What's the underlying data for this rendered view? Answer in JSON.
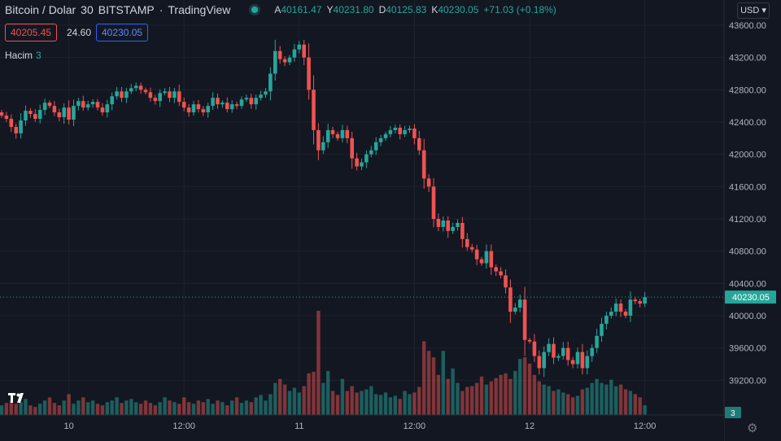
{
  "header": {
    "symbol": "Bitcoin / Dolar",
    "interval": "30",
    "exchange": "BITSTAMP",
    "source": "TradingView",
    "o_key": "A",
    "o_val": "40161.47",
    "h_key": "Y",
    "h_val": "40231.80",
    "l_key": "D",
    "l_val": "40125.83",
    "c_key": "K",
    "c_val": "40230.05",
    "change": "+71.03 (+0.18%)"
  },
  "trade": {
    "sell": "40205.45",
    "spread": "24.60",
    "buy": "40230.05"
  },
  "volume_legend": {
    "label": "Hacim",
    "value": "3"
  },
  "currency_button": "USD",
  "colors": {
    "up": "#26a69a",
    "down": "#ef5350",
    "background": "#131722",
    "grid": "#1e222d",
    "buy_border": "#2962ff"
  },
  "icons": {
    "status": "market-open-dot",
    "logo": "tradingview-logo",
    "settings": "gear-icon",
    "dropdown": "chevron-down-icon"
  },
  "chart_data": {
    "type": "candlestick",
    "ylim": [
      39000,
      43700
    ],
    "y_ticks": [
      39200,
      39600,
      40000,
      40400,
      40800,
      41200,
      41600,
      42000,
      42400,
      42800,
      43200,
      43600
    ],
    "y_tick_labels": [
      "39200.00",
      "39600.00",
      "40000.00",
      "40400.00",
      "40800.00",
      "41200.00",
      "41600.00",
      "42000.00",
      "42400.00",
      "42800.00",
      "43200.00",
      "43600.00"
    ],
    "x_labels": [
      {
        "label": "10",
        "index": 14
      },
      {
        "label": "12:00",
        "index": 38
      },
      {
        "label": "11",
        "index": 62
      },
      {
        "label": "12:00",
        "index": 86
      },
      {
        "label": "12",
        "index": 110
      },
      {
        "label": "12:00",
        "index": 134
      }
    ],
    "last_price": 40230.05,
    "last_price_label": "40230.05",
    "last_volume_label": "3",
    "candles_close": [
      42480,
      42440,
      42340,
      42260,
      42420,
      42540,
      42500,
      42440,
      42550,
      42640,
      42600,
      42520,
      42460,
      42580,
      42430,
      42600,
      42660,
      42580,
      42620,
      42650,
      42580,
      42520,
      42620,
      42720,
      42780,
      42700,
      42780,
      42820,
      42850,
      42800,
      42770,
      42700,
      42660,
      42760,
      42780,
      42700,
      42780,
      42650,
      42580,
      42520,
      42620,
      42560,
      42520,
      42600,
      42700,
      42620,
      42640,
      42560,
      42620,
      42600,
      42680,
      42700,
      42620,
      42700,
      42740,
      42780,
      43000,
      43280,
      43180,
      43140,
      43200,
      43300,
      43360,
      43200,
      42800,
      42300,
      42050,
      42150,
      42300,
      42250,
      42200,
      42300,
      42200,
      41950,
      41850,
      41900,
      42000,
      42050,
      42150,
      42200,
      42250,
      42300,
      42330,
      42250,
      42300,
      42320,
      42200,
      42050,
      41700,
      41600,
      41200,
      41100,
      41180,
      41050,
      41100,
      41150,
      40950,
      40850,
      40820,
      40700,
      40650,
      40800,
      40600,
      40550,
      40500,
      40350,
      40050,
      40100,
      40200,
      39700,
      39680,
      39500,
      39350,
      39550,
      39650,
      39480,
      39500,
      39600,
      39450,
      39400,
      39550,
      39350,
      39500,
      39600,
      39750,
      39900,
      40000,
      40050,
      40150,
      40050,
      40000,
      40200,
      40180,
      40150,
      40230
    ],
    "volume": [
      12,
      15,
      18,
      14,
      16,
      20,
      12,
      10,
      14,
      18,
      22,
      15,
      12,
      18,
      26,
      14,
      18,
      22,
      16,
      18,
      14,
      12,
      16,
      18,
      22,
      15,
      18,
      20,
      16,
      14,
      18,
      15,
      12,
      16,
      22,
      18,
      16,
      14,
      22,
      16,
      14,
      18,
      16,
      20,
      14,
      18,
      16,
      12,
      18,
      22,
      15,
      18,
      16,
      22,
      25,
      18,
      26,
      40,
      45,
      38,
      30,
      34,
      28,
      36,
      52,
      54,
      130,
      40,
      55,
      30,
      25,
      45,
      30,
      36,
      28,
      30,
      32,
      36,
      26,
      25,
      28,
      22,
      24,
      20,
      30,
      26,
      28,
      35,
      92,
      80,
      72,
      50,
      80,
      45,
      58,
      40,
      30,
      35,
      36,
      40,
      48,
      38,
      42,
      46,
      50,
      52,
      45,
      55,
      70,
      72,
      64,
      50,
      42,
      38,
      36,
      30,
      32,
      28,
      26,
      22,
      24,
      32,
      34,
      40,
      45,
      40,
      38,
      44,
      36,
      38,
      32,
      30,
      26,
      22,
      12
    ]
  }
}
